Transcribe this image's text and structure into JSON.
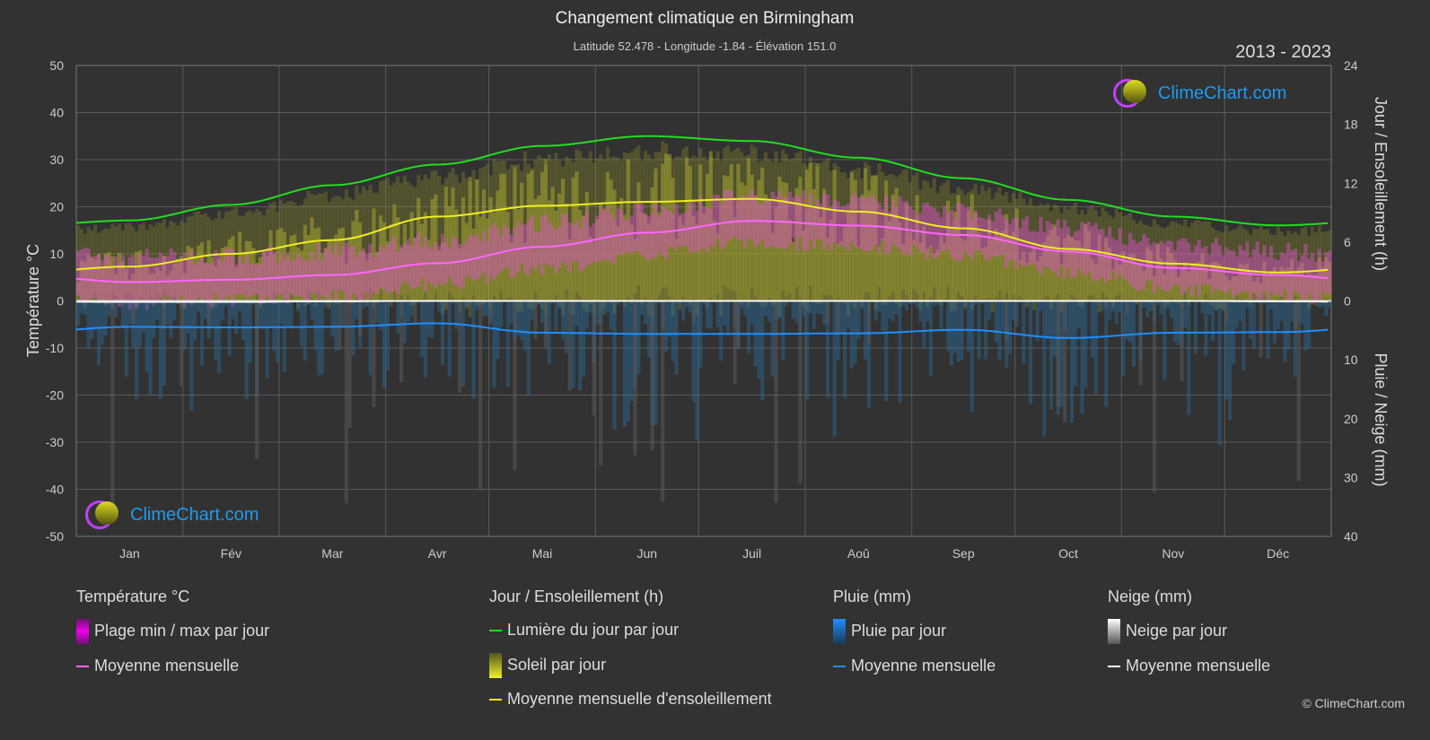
{
  "header": {
    "title": "Changement climatique en Birmingham",
    "subtitle": "Latitude 52.478 - Longitude -1.84 - Élévation 151.0",
    "years": "2013 - 2023"
  },
  "logo_text": "ClimeChart.com",
  "copyright": "© ClimeChart.com",
  "chart_data": {
    "type": "line",
    "title": "Changement climatique en Birmingham",
    "categories": [
      "Jan",
      "Fév",
      "Mar",
      "Avr",
      "Mai",
      "Jun",
      "Juil",
      "Aoû",
      "Sep",
      "Oct",
      "Nov",
      "Déc"
    ],
    "left_axis": {
      "label": "Température °C",
      "range": [
        -50,
        50
      ],
      "ticks": [
        "50",
        "40",
        "30",
        "20",
        "10",
        "0",
        "-10",
        "-20",
        "-30",
        "-40",
        "-50"
      ]
    },
    "right_axis_top": {
      "label": "Jour / Ensoleillement (h)",
      "range": [
        0,
        24
      ],
      "ticks": [
        "24",
        "18",
        "12",
        "6",
        "0"
      ]
    },
    "right_axis_bottom": {
      "label": "Pluie / Neige (mm)",
      "range": [
        0,
        40
      ],
      "ticks": [
        "10",
        "20",
        "30",
        "40"
      ]
    },
    "series": [
      {
        "name": "Moyenne mensuelle (température)",
        "unit": "°C",
        "color": "#ff66ff",
        "values": [
          4.0,
          4.5,
          5.5,
          8.0,
          11.5,
          14.5,
          17.0,
          16.0,
          14.0,
          10.5,
          7.0,
          5.5
        ]
      },
      {
        "name": "Lumière du jour par jour",
        "unit": "h",
        "color": "#22dd22",
        "values": [
          8.2,
          9.8,
          11.8,
          13.9,
          15.8,
          16.8,
          16.3,
          14.6,
          12.5,
          10.3,
          8.6,
          7.7
        ]
      },
      {
        "name": "Moyenne mensuelle d'ensoleillement",
        "unit": "h",
        "color": "#eeee22",
        "values": [
          3.5,
          4.8,
          6.2,
          8.6,
          9.7,
          10.1,
          10.4,
          9.1,
          7.4,
          5.3,
          3.8,
          2.9
        ]
      },
      {
        "name": "Moyenne mensuelle (pluie)",
        "unit": "mm",
        "color": "#1e8fff",
        "values": [
          4.4,
          4.5,
          4.4,
          3.8,
          5.4,
          5.6,
          5.6,
          5.5,
          4.9,
          6.3,
          5.4,
          5.3
        ]
      },
      {
        "name": "Moyenne mensuelle (neige)",
        "unit": "mm",
        "color": "#ffffff",
        "values": [
          0.2,
          0.2,
          0.1,
          0,
          0,
          0,
          0,
          0,
          0,
          0,
          0,
          0.1
        ]
      }
    ],
    "grid": true
  },
  "legend": {
    "temp": {
      "heading": "Température °C",
      "items": [
        "Plage min / max par jour",
        "Moyenne mensuelle"
      ]
    },
    "sun": {
      "heading": "Jour / Ensoleillement (h)",
      "items": [
        "Lumière du jour par jour",
        "Soleil par jour",
        "Moyenne mensuelle d'ensoleillement"
      ]
    },
    "rain": {
      "heading": "Pluie (mm)",
      "items": [
        "Pluie par jour",
        "Moyenne mensuelle"
      ]
    },
    "snow": {
      "heading": "Neige (mm)",
      "items": [
        "Neige par jour",
        "Moyenne mensuelle"
      ]
    }
  }
}
